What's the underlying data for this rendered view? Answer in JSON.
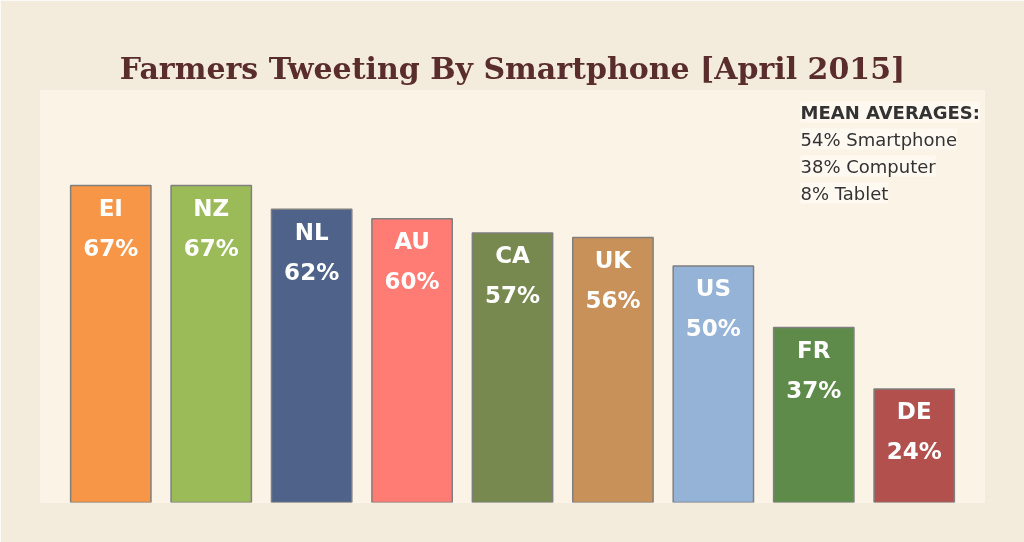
{
  "chart_data": {
    "type": "bar",
    "title": "Farmers Tweeting By Smartphone [April 2015]",
    "categories": [
      "EI",
      "NZ",
      "NL",
      "AU",
      "CA",
      "UK",
      "US",
      "FR",
      "DE"
    ],
    "values": [
      67,
      67,
      62,
      60,
      57,
      56,
      50,
      37,
      24
    ],
    "value_labels": [
      "67%",
      "67%",
      "62%",
      "60%",
      "57%",
      "56%",
      "50%",
      "37%",
      "24%"
    ],
    "colors": [
      "#f79646",
      "#9bbb59",
      "#4f6289",
      "#ff7c74",
      "#77894f",
      "#c8915a",
      "#95b3d7",
      "#5e8a4a",
      "#b2504d"
    ],
    "annotations": [
      "MEAN AVERAGES:",
      "54% Smartphone",
      "38% Computer",
      "8% Tablet"
    ],
    "grid": false
  }
}
